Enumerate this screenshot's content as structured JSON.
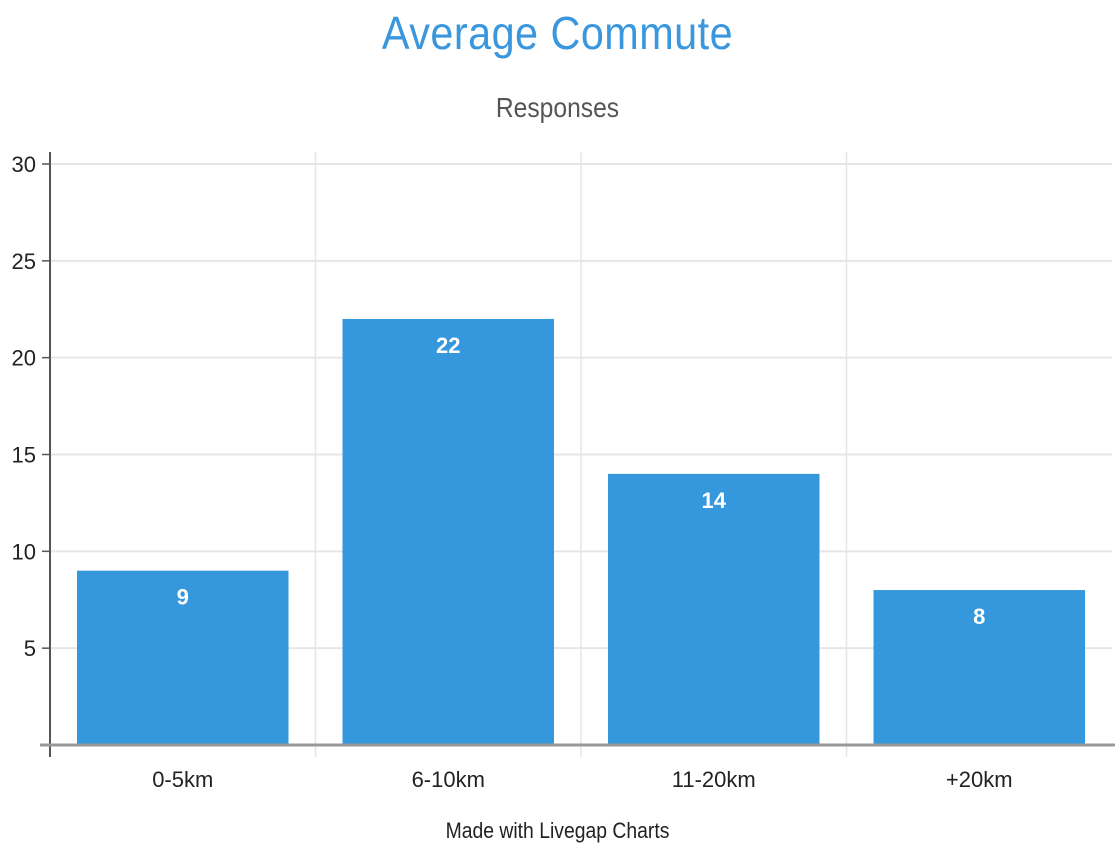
{
  "chart_data": {
    "type": "bar",
    "title": "Average Commute",
    "subtitle": "Responses",
    "categories": [
      "0-5km",
      "6-10km",
      "11-20km",
      "+20km"
    ],
    "values": [
      9,
      22,
      14,
      8
    ],
    "ylim": [
      0,
      30
    ],
    "yticks": [
      5,
      10,
      15,
      20,
      25,
      30
    ],
    "grid": true,
    "bar_color": "#3598dc",
    "show_data_labels": true
  },
  "footer": {
    "credit": "Made with Livegap Charts"
  }
}
